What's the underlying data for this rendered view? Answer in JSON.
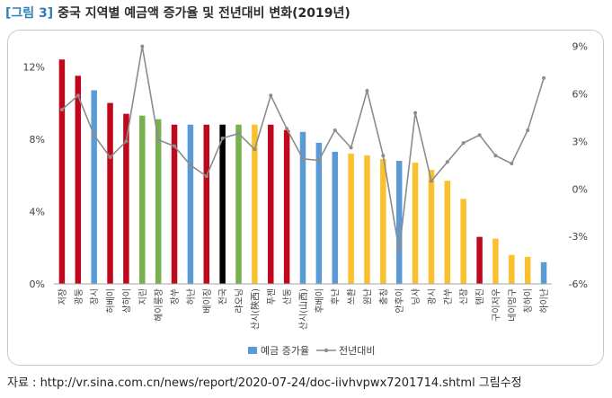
{
  "figure": {
    "tag": "[그림 3]",
    "title": "중국 지역별 예금액 증가율 및 전년대비 변화(2019년)"
  },
  "source": "자료 : http://vr.sina.com.cn/news/report/2020-07-24/doc-iivhvpwx7201714.shtml 그림수정",
  "colors": {
    "red": "#c0081c",
    "green": "#77b04d",
    "blue": "#5b9bd5",
    "yellow": "#fbc12c",
    "black": "#000000",
    "line": "#8c8c8c",
    "legend_bar": "#5b9bd5"
  },
  "chart_data": {
    "type": "bar",
    "title": "",
    "categories": [
      "저장",
      "광둥",
      "장시",
      "허베이",
      "상하이",
      "지린",
      "헤이룽장",
      "장쑤",
      "허난",
      "베이징",
      "전국",
      "랴오닝",
      "산시(陝西)",
      "푸젠",
      "산둥",
      "산시(山西)",
      "후베이",
      "후난",
      "쓰촨",
      "윈난",
      "충칭",
      "안후이",
      "닝샤",
      "광시",
      "간쑤",
      "신장",
      "톈진",
      "구이저우",
      "네이멍구",
      "칭하이",
      "하이난"
    ],
    "series": [
      {
        "name": "예금 증가율",
        "type": "bar",
        "axis": "left",
        "unit": "%",
        "values": [
          12.4,
          11.5,
          10.7,
          10.0,
          9.4,
          9.3,
          9.1,
          8.8,
          8.8,
          8.8,
          8.8,
          8.8,
          8.8,
          8.8,
          8.5,
          8.4,
          7.8,
          7.3,
          7.2,
          7.1,
          6.9,
          6.8,
          6.7,
          6.3,
          5.7,
          4.7,
          2.6,
          2.5,
          1.6,
          1.5,
          1.2
        ],
        "colors": [
          "red",
          "red",
          "blue",
          "red",
          "red",
          "green",
          "green",
          "red",
          "blue",
          "red",
          "black",
          "green",
          "yellow",
          "red",
          "red",
          "blue",
          "blue",
          "blue",
          "yellow",
          "yellow",
          "yellow",
          "blue",
          "yellow",
          "yellow",
          "yellow",
          "yellow",
          "red",
          "yellow",
          "yellow",
          "yellow",
          "blue"
        ]
      },
      {
        "name": "전년대비",
        "type": "line",
        "axis": "right",
        "unit": "%p",
        "values": [
          5.0,
          5.9,
          3.4,
          2.0,
          3.0,
          9.0,
          3.1,
          2.7,
          1.5,
          0.8,
          3.2,
          3.5,
          2.5,
          5.9,
          3.8,
          1.9,
          1.8,
          3.7,
          2.6,
          6.2,
          2.1,
          -3.9,
          4.8,
          0.5,
          1.7,
          2.9,
          3.4,
          2.1,
          1.6,
          3.7,
          7.0
        ]
      }
    ],
    "y_left": {
      "min": 0,
      "max": 14,
      "ticks": [
        0,
        4,
        8,
        12
      ],
      "tick_labels": [
        "0%",
        "4%",
        "8%",
        "12%"
      ]
    },
    "y_right": {
      "min": -6,
      "max": 10,
      "ticks": [
        -6,
        -3,
        0,
        3,
        6,
        9
      ],
      "tick_labels": [
        "-6%",
        "-3%",
        "0%",
        "3%",
        "6%",
        "9%"
      ]
    },
    "grid": false,
    "legend": {
      "position": "bottom",
      "items": [
        {
          "label": "예금 증가율",
          "kind": "bar"
        },
        {
          "label": "전년대비",
          "kind": "line"
        }
      ]
    }
  }
}
